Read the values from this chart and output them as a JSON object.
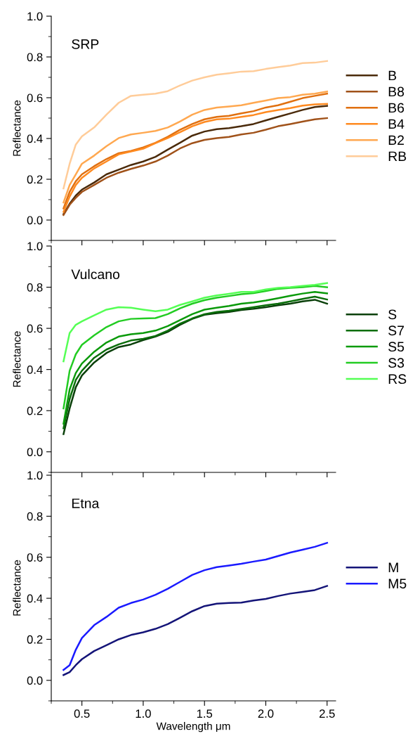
{
  "chart_data": [
    {
      "type": "line",
      "title": "SRP",
      "ylabel": "Reflectance",
      "legend": "right",
      "tick_labels": "y",
      "x": [
        0.35,
        0.4,
        0.45,
        0.5,
        0.6,
        0.7,
        0.8,
        0.9,
        1.0,
        1.1,
        1.2,
        1.3,
        1.4,
        1.5,
        1.6,
        1.7,
        1.8,
        1.9,
        2.0,
        2.1,
        2.2,
        2.3,
        2.4,
        2.5
      ],
      "xlim": [
        0.25,
        2.57
      ],
      "xticks": [
        {
          "value": 0.5,
          "label": null
        },
        {
          "value": 1.0,
          "label": null
        },
        {
          "value": 1.5,
          "label": null
        },
        {
          "value": 2.0,
          "label": null
        },
        {
          "value": 2.5,
          "label": null
        }
      ],
      "ylim": [
        -0.1,
        1.0
      ],
      "yticks": [
        {
          "value": 0,
          "label": "0.0"
        },
        {
          "value": 0.2,
          "label": "0.2"
        },
        {
          "value": 0.4,
          "label": "0.4"
        },
        {
          "value": 0.6,
          "label": "0.6"
        },
        {
          "value": 0.8,
          "label": "0.8"
        },
        {
          "value": 1.0,
          "label": "1.0"
        }
      ],
      "series": [
        {
          "name": "B",
          "color": "#4a2a0a",
          "values": [
            0.029,
            0.08,
            0.12,
            0.149,
            0.184,
            0.224,
            0.247,
            0.27,
            0.287,
            0.31,
            0.345,
            0.379,
            0.414,
            0.434,
            0.446,
            0.451,
            0.46,
            0.471,
            0.489,
            0.506,
            0.523,
            0.54,
            0.554,
            0.56
          ]
        },
        {
          "name": "B8",
          "color": "#a0521a",
          "values": [
            0.025,
            0.075,
            0.109,
            0.138,
            0.172,
            0.207,
            0.232,
            0.251,
            0.267,
            0.287,
            0.316,
            0.351,
            0.377,
            0.393,
            0.402,
            0.408,
            0.42,
            0.428,
            0.443,
            0.46,
            0.471,
            0.483,
            0.494,
            0.5
          ]
        },
        {
          "name": "B6",
          "color": "#e07010",
          "values": [
            0.057,
            0.138,
            0.19,
            0.224,
            0.264,
            0.299,
            0.328,
            0.339,
            0.356,
            0.379,
            0.408,
            0.443,
            0.471,
            0.494,
            0.506,
            0.511,
            0.523,
            0.534,
            0.552,
            0.563,
            0.58,
            0.598,
            0.609,
            0.62
          ]
        },
        {
          "name": "B4",
          "color": "#ff8a20",
          "values": [
            0.04,
            0.115,
            0.172,
            0.207,
            0.253,
            0.287,
            0.322,
            0.336,
            0.35,
            0.377,
            0.402,
            0.431,
            0.46,
            0.481,
            0.494,
            0.497,
            0.506,
            0.515,
            0.529,
            0.54,
            0.549,
            0.561,
            0.567,
            0.57
          ]
        },
        {
          "name": "B2",
          "color": "#ffa850",
          "values": [
            0.086,
            0.172,
            0.224,
            0.276,
            0.316,
            0.362,
            0.402,
            0.42,
            0.428,
            0.437,
            0.454,
            0.483,
            0.517,
            0.54,
            0.552,
            0.557,
            0.563,
            0.575,
            0.586,
            0.598,
            0.603,
            0.615,
            0.62,
            0.63
          ]
        },
        {
          "name": "RB",
          "color": "#ffcc99",
          "values": [
            0.155,
            0.276,
            0.37,
            0.41,
            0.454,
            0.517,
            0.575,
            0.609,
            0.615,
            0.62,
            0.632,
            0.66,
            0.684,
            0.7,
            0.713,
            0.72,
            0.728,
            0.73,
            0.741,
            0.75,
            0.758,
            0.77,
            0.772,
            0.78
          ]
        }
      ]
    },
    {
      "type": "line",
      "title": "Vulcano",
      "ylabel": "Reflectance",
      "legend": "right",
      "tick_labels": "y",
      "x": [
        0.35,
        0.4,
        0.45,
        0.5,
        0.6,
        0.7,
        0.8,
        0.9,
        1.0,
        1.1,
        1.2,
        1.3,
        1.4,
        1.5,
        1.6,
        1.7,
        1.8,
        1.9,
        2.0,
        2.1,
        2.2,
        2.3,
        2.4,
        2.5
      ],
      "xlim": [
        0.25,
        2.57
      ],
      "xticks": [
        {
          "value": 0.5,
          "label": null
        },
        {
          "value": 1.0,
          "label": null
        },
        {
          "value": 1.5,
          "label": null
        },
        {
          "value": 2.0,
          "label": null
        },
        {
          "value": 2.5,
          "label": null
        }
      ],
      "ylim": [
        -0.1,
        1.0
      ],
      "yticks": [
        {
          "value": 0,
          "label": "0.0"
        },
        {
          "value": 0.2,
          "label": "0.2"
        },
        {
          "value": 0.4,
          "label": "0.4"
        },
        {
          "value": 0.6,
          "label": "0.6"
        },
        {
          "value": 0.8,
          "label": "0.8"
        },
        {
          "value": 1.0,
          "label": "1.0"
        }
      ],
      "series": [
        {
          "name": "S",
          "color": "#0a400a",
          "values": [
            0.086,
            0.211,
            0.314,
            0.371,
            0.434,
            0.48,
            0.509,
            0.522,
            0.543,
            0.56,
            0.583,
            0.617,
            0.646,
            0.666,
            0.674,
            0.68,
            0.689,
            0.695,
            0.703,
            0.712,
            0.72,
            0.731,
            0.739,
            0.72
          ]
        },
        {
          "name": "S7",
          "color": "#0a6e0a",
          "values": [
            0.114,
            0.257,
            0.349,
            0.394,
            0.457,
            0.497,
            0.522,
            0.541,
            0.549,
            0.563,
            0.589,
            0.623,
            0.648,
            0.669,
            0.68,
            0.686,
            0.694,
            0.703,
            0.712,
            0.72,
            0.731,
            0.743,
            0.754,
            0.74
          ]
        },
        {
          "name": "S5",
          "color": "#0a9a0a",
          "values": [
            0.137,
            0.303,
            0.383,
            0.429,
            0.486,
            0.531,
            0.56,
            0.571,
            0.577,
            0.589,
            0.611,
            0.64,
            0.669,
            0.691,
            0.7,
            0.709,
            0.72,
            0.726,
            0.735,
            0.746,
            0.758,
            0.769,
            0.777,
            0.77
          ]
        },
        {
          "name": "S3",
          "color": "#22cc22",
          "values": [
            0.211,
            0.394,
            0.474,
            0.52,
            0.566,
            0.606,
            0.634,
            0.646,
            0.648,
            0.65,
            0.669,
            0.697,
            0.72,
            0.737,
            0.749,
            0.757,
            0.766,
            0.771,
            0.781,
            0.792,
            0.797,
            0.8,
            0.806,
            0.8
          ]
        },
        {
          "name": "RS",
          "color": "#55ff55",
          "values": [
            0.44,
            0.577,
            0.617,
            0.634,
            0.663,
            0.691,
            0.703,
            0.7,
            0.691,
            0.683,
            0.691,
            0.714,
            0.731,
            0.749,
            0.76,
            0.768,
            0.777,
            0.777,
            0.789,
            0.797,
            0.8,
            0.806,
            0.811,
            0.82
          ]
        }
      ]
    },
    {
      "type": "line",
      "title": "Etna",
      "ylabel": "Reflectance",
      "xlabel": "Wavelength μm",
      "legend": "right",
      "x": [
        0.35,
        0.4,
        0.45,
        0.5,
        0.6,
        0.7,
        0.8,
        0.9,
        1.0,
        1.1,
        1.2,
        1.3,
        1.4,
        1.5,
        1.6,
        1.7,
        1.8,
        1.9,
        2.0,
        2.1,
        2.2,
        2.3,
        2.4,
        2.5
      ],
      "xlim": [
        0.25,
        2.57
      ],
      "xticks": [
        {
          "value": 0.5,
          "label": "0.5"
        },
        {
          "value": 1.0,
          "label": "1.0"
        },
        {
          "value": 1.5,
          "label": "1.5"
        },
        {
          "value": 2.0,
          "label": "2.0"
        },
        {
          "value": 2.5,
          "label": "2.5"
        }
      ],
      "ylim": [
        -0.1,
        1.0
      ],
      "yticks": [
        {
          "value": 0,
          "label": "0.0"
        },
        {
          "value": 0.2,
          "label": "0.2"
        },
        {
          "value": 0.4,
          "label": "0.4"
        },
        {
          "value": 0.6,
          "label": "0.6"
        },
        {
          "value": 0.8,
          "label": "0.8"
        },
        {
          "value": 1.0,
          "label": "1.0"
        }
      ],
      "series": [
        {
          "name": "M",
          "color": "#141478",
          "values": [
            0.026,
            0.04,
            0.074,
            0.103,
            0.143,
            0.171,
            0.2,
            0.221,
            0.234,
            0.251,
            0.274,
            0.305,
            0.337,
            0.362,
            0.374,
            0.377,
            0.379,
            0.389,
            0.397,
            0.411,
            0.423,
            0.431,
            0.44,
            0.46
          ]
        },
        {
          "name": "M5",
          "color": "#1a1aff",
          "values": [
            0.051,
            0.074,
            0.149,
            0.206,
            0.269,
            0.309,
            0.354,
            0.377,
            0.394,
            0.417,
            0.446,
            0.48,
            0.514,
            0.537,
            0.552,
            0.56,
            0.568,
            0.579,
            0.589,
            0.606,
            0.623,
            0.637,
            0.651,
            0.67
          ]
        }
      ]
    }
  ]
}
